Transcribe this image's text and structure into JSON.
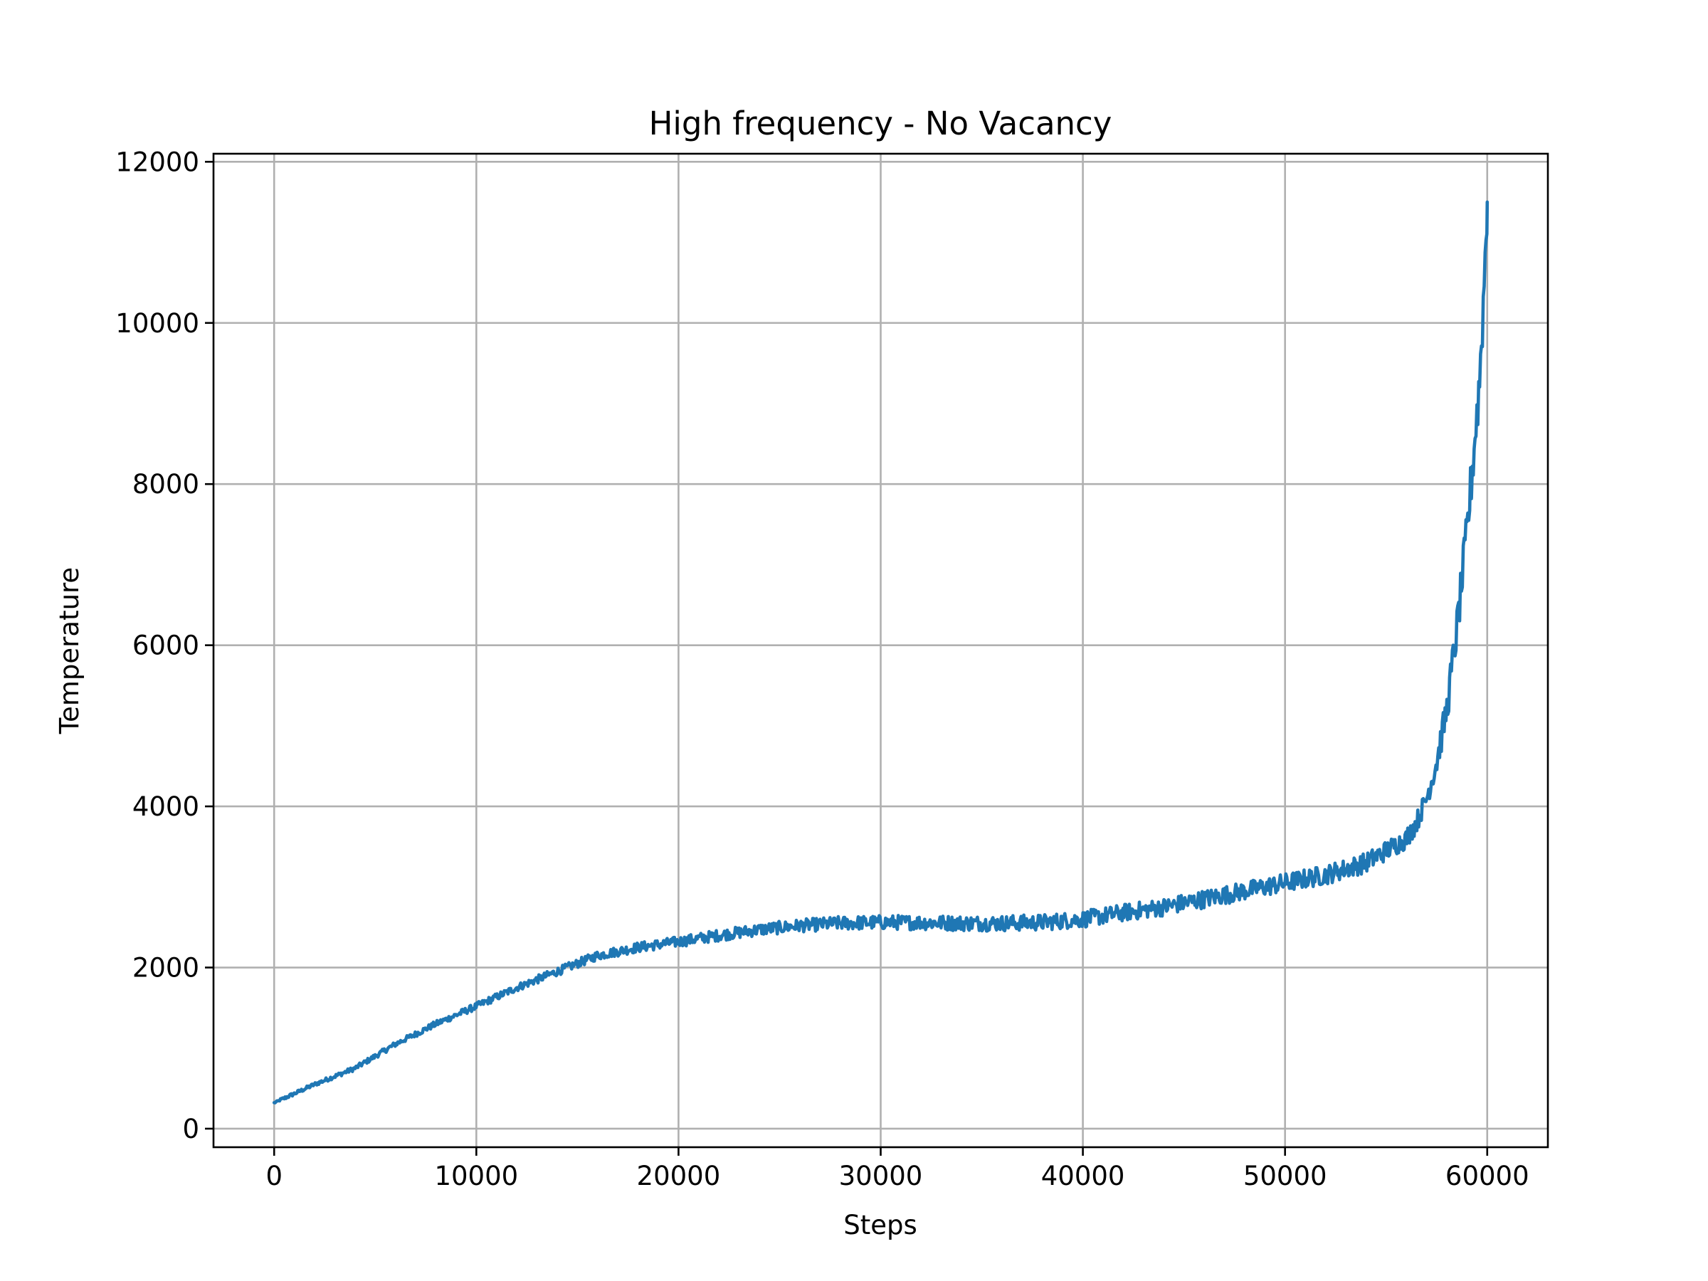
{
  "chart_data": {
    "type": "line",
    "title": "High frequency - No Vacancy",
    "xlabel": "Steps",
    "ylabel": "Temperature",
    "xlim": [
      -3000,
      63000
    ],
    "ylim": [
      -230,
      12100
    ],
    "x_ticks": [
      0,
      10000,
      20000,
      30000,
      40000,
      50000,
      60000
    ],
    "y_ticks": [
      0,
      2000,
      4000,
      6000,
      8000,
      10000,
      12000
    ],
    "x_tick_labels": [
      "0",
      "10000",
      "20000",
      "30000",
      "40000",
      "50000",
      "60000"
    ],
    "y_tick_labels": [
      "0",
      "2000",
      "4000",
      "6000",
      "8000",
      "10000",
      "12000"
    ],
    "grid": true,
    "legend": "none",
    "series": [
      {
        "color": "#1f77b4",
        "x": [
          0,
          2000,
          4000,
          6000,
          8000,
          10000,
          12000,
          14000,
          16000,
          18000,
          20000,
          22000,
          24000,
          26000,
          28000,
          30000,
          32000,
          34000,
          36000,
          38000,
          40000,
          42000,
          44000,
          46000,
          48000,
          50000,
          52000,
          54000,
          55000,
          56000,
          56500,
          57000,
          57500,
          58000,
          58500,
          59000,
          59300,
          59600,
          59800,
          60000
        ],
        "y": [
          320,
          550,
          750,
          1050,
          1300,
          1520,
          1750,
          1950,
          2150,
          2250,
          2320,
          2400,
          2470,
          2520,
          2550,
          2560,
          2560,
          2550,
          2550,
          2560,
          2600,
          2680,
          2750,
          2850,
          2950,
          3050,
          3150,
          3300,
          3450,
          3600,
          3800,
          4100,
          4550,
          5200,
          6200,
          7400,
          8300,
          9200,
          10200,
          11500
        ]
      }
    ]
  }
}
